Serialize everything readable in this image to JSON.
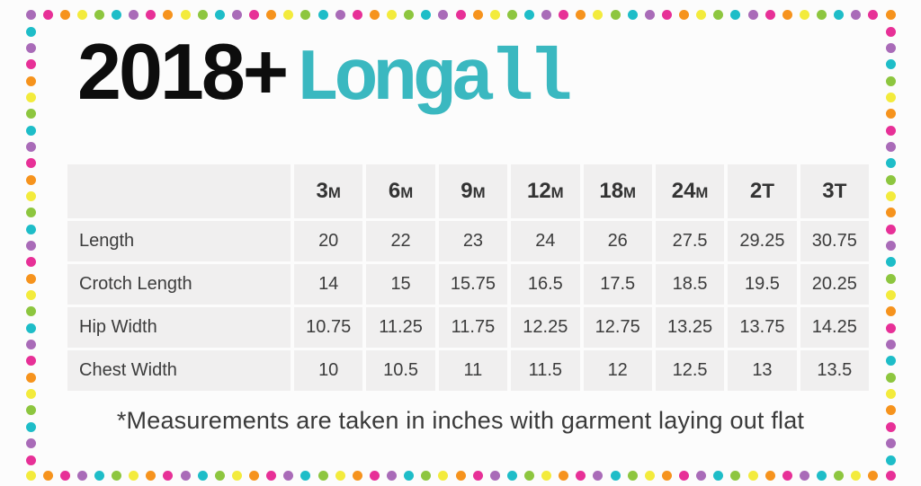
{
  "header": {
    "year": "2018+",
    "product": "Longall"
  },
  "chart_data": {
    "type": "table",
    "title": "2018+ Longall",
    "columns": [
      "3M",
      "6M",
      "9M",
      "12M",
      "18M",
      "24M",
      "2T",
      "3T"
    ],
    "rows": [
      {
        "label": "Length",
        "values": [
          20,
          22,
          23,
          24,
          26,
          27.5,
          29.25,
          30.75
        ]
      },
      {
        "label": "Crotch Length",
        "values": [
          14,
          15,
          15.75,
          16.5,
          17.5,
          18.5,
          19.5,
          20.25
        ]
      },
      {
        "label": "Hip Width",
        "values": [
          10.75,
          11.25,
          11.75,
          12.25,
          12.75,
          13.25,
          13.75,
          14.25
        ]
      },
      {
        "label": "Chest Width",
        "values": [
          10,
          10.5,
          11,
          11.5,
          12,
          12.5,
          13,
          13.5
        ]
      }
    ],
    "units": "inches",
    "footnote": "*Measurements are taken in inches with garment laying out flat"
  },
  "footnote": "*Measurements are taken in inches with garment laying out flat",
  "colors": {
    "title_accent": "#3ab8c0",
    "title_black": "#0d0d0d",
    "cell_background": "#f0efef",
    "table_text": "#3c3c3c",
    "dot_cycle": [
      "#a96bb8",
      "#e73097",
      "#f6931d",
      "#f3eb3c",
      "#8dc63f",
      "#1ebdc8"
    ],
    "dot_cycle_names": [
      "purple",
      "pink",
      "orange",
      "yellow",
      "green",
      "teal"
    ]
  }
}
